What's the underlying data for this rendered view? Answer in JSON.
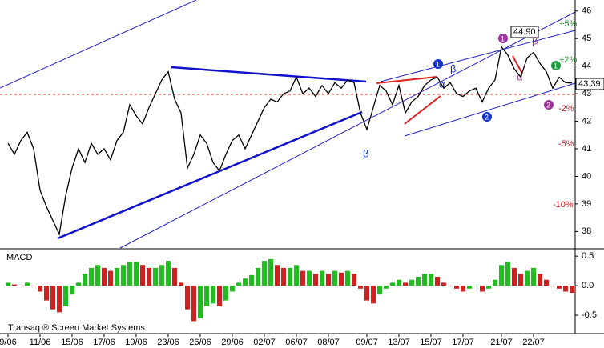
{
  "chart_data": [
    {
      "type": "line",
      "color": "#000000",
      "categories": [
        "9/06",
        null,
        null,
        null,
        null,
        "11/06",
        null,
        null,
        null,
        null,
        "15/06",
        null,
        null,
        null,
        null,
        "17/06",
        null,
        null,
        null,
        null,
        "19/06",
        null,
        null,
        null,
        null,
        "23/06",
        null,
        null,
        null,
        null,
        "26/06",
        null,
        null,
        null,
        null,
        "29/06",
        null,
        null,
        null,
        null,
        "02/07",
        null,
        null,
        null,
        null,
        "06/07",
        null,
        null,
        null,
        null,
        "08/07",
        null,
        null,
        null,
        null,
        null,
        "09/07",
        null,
        null,
        null,
        null,
        "13/07",
        null,
        null,
        null,
        null,
        "15/07",
        null,
        null,
        null,
        null,
        "17/07",
        null,
        null,
        null,
        null,
        null,
        "21/07",
        null,
        null,
        null,
        null,
        "22/07",
        null,
        null,
        null,
        null,
        null,
        null
      ],
      "values": [
        41.2,
        40.8,
        41.3,
        41.6,
        41.0,
        39.5,
        38.9,
        38.4,
        37.9,
        39.3,
        40.3,
        41.0,
        40.5,
        41.2,
        40.8,
        41.0,
        40.6,
        41.3,
        41.6,
        42.6,
        42.2,
        41.9,
        42.5,
        43.0,
        43.5,
        43.8,
        42.8,
        42.3,
        40.3,
        40.8,
        41.5,
        41.2,
        40.5,
        40.2,
        40.8,
        41.3,
        41.5,
        41.0,
        41.5,
        42.0,
        42.5,
        42.8,
        42.7,
        43.0,
        43.1,
        43.6,
        43.0,
        43.2,
        42.9,
        43.3,
        43.0,
        43.4,
        43.2,
        43.5,
        43.4,
        42.3,
        41.7,
        42.5,
        43.3,
        43.1,
        42.6,
        43.3,
        42.3,
        42.7,
        42.9,
        43.3,
        43.5,
        43.6,
        43.2,
        43.4,
        43.0,
        42.9,
        43.1,
        43.2,
        42.7,
        43.2,
        43.5,
        44.7,
        44.4,
        43.9,
        43.6,
        44.3,
        44.5,
        44.1,
        43.8,
        43.2,
        43.6,
        43.4,
        43.39
      ],
      "ylim": [
        37.4,
        46.4
      ],
      "yticks": [
        38,
        39,
        40,
        41,
        42,
        43,
        44,
        45,
        46
      ],
      "annotations": [
        "+5%",
        "+2%",
        "-2%",
        "-5%",
        "-10%",
        "44.90",
        "43.39",
        "1",
        "β",
        "α",
        "β",
        "2",
        "1",
        "β",
        "α",
        "1",
        "2"
      ]
    },
    {
      "type": "bar",
      "title": "MACD",
      "source": "Transaq ® Screen Market Systems",
      "rising_color": "#22bb22",
      "falling_color": "#cc2222",
      "values": [
        0.05,
        0.02,
        0.0,
        0.05,
        0.0,
        -0.1,
        -0.25,
        -0.4,
        -0.45,
        -0.35,
        -0.15,
        0.05,
        0.2,
        0.3,
        0.35,
        0.3,
        0.25,
        0.3,
        0.35,
        0.4,
        0.4,
        0.35,
        0.3,
        0.3,
        0.35,
        0.42,
        0.3,
        0.05,
        -0.4,
        -0.6,
        -0.55,
        -0.35,
        -0.3,
        -0.35,
        -0.25,
        -0.1,
        0.05,
        0.12,
        0.18,
        0.3,
        0.42,
        0.45,
        0.35,
        0.3,
        0.3,
        0.35,
        0.25,
        0.25,
        0.2,
        0.25,
        0.2,
        0.25,
        0.22,
        0.25,
        0.2,
        -0.05,
        -0.25,
        -0.3,
        -0.15,
        -0.05,
        0.05,
        0.1,
        0.05,
        0.1,
        0.15,
        0.2,
        0.2,
        0.15,
        0.05,
        0.0,
        -0.05,
        -0.1,
        -0.05,
        0.0,
        -0.1,
        -0.05,
        0.1,
        0.35,
        0.4,
        0.3,
        0.2,
        0.25,
        0.3,
        0.2,
        0.1,
        0.0,
        -0.05,
        -0.1,
        -0.12
      ],
      "ylim": [
        -0.81,
        0.61
      ],
      "yticks": [
        0.5,
        {
          "value": 0,
          "label": "0.0"
        },
        -0.5
      ]
    }
  ]
}
